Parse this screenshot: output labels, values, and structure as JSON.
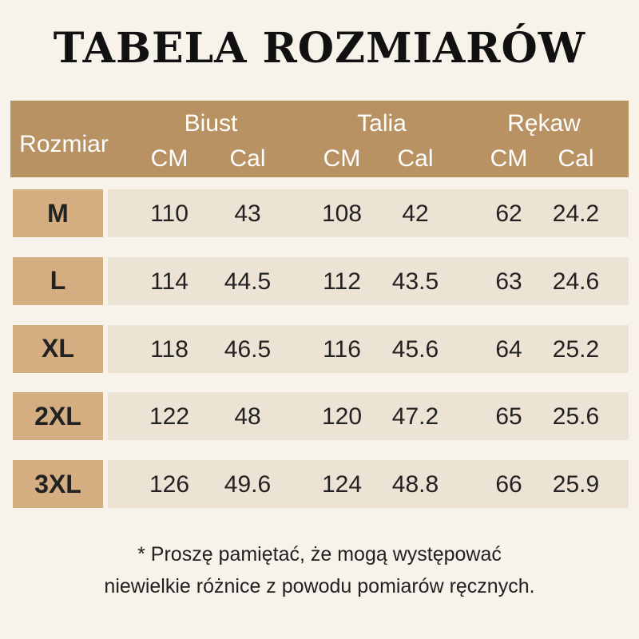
{
  "title": "TABELA ROZMIARÓW",
  "header": {
    "size_label": "Rozmiar",
    "groups": [
      {
        "label": "Biust",
        "units": [
          "CM",
          "Cal"
        ]
      },
      {
        "label": "Talia",
        "units": [
          "CM",
          "Cal"
        ]
      },
      {
        "label": "Rękaw",
        "units": [
          "CM",
          "Cal"
        ]
      }
    ]
  },
  "rows": [
    {
      "size": "M",
      "values": [
        "110",
        "43",
        "108",
        "42",
        "62",
        "24.2"
      ]
    },
    {
      "size": "L",
      "values": [
        "114",
        "44.5",
        "112",
        "43.5",
        "63",
        "24.6"
      ]
    },
    {
      "size": "XL",
      "values": [
        "118",
        "46.5",
        "116",
        "45.6",
        "64",
        "25.2"
      ]
    },
    {
      "size": "2XL",
      "values": [
        "122",
        "48",
        "120",
        "47.2",
        "65",
        "25.6"
      ]
    },
    {
      "size": "3XL",
      "values": [
        "126",
        "49.6",
        "124",
        "48.8",
        "66",
        "25.9"
      ]
    }
  ],
  "note": [
    "* Proszę pamiętać, że mogą występować",
    "niewielkie różnice z powodu pomiarów ręcznych."
  ],
  "colors": {
    "header": "#b89262",
    "size_cell": "#d4ae80",
    "row": "#ede3d5",
    "background": "#f7f2ea"
  }
}
